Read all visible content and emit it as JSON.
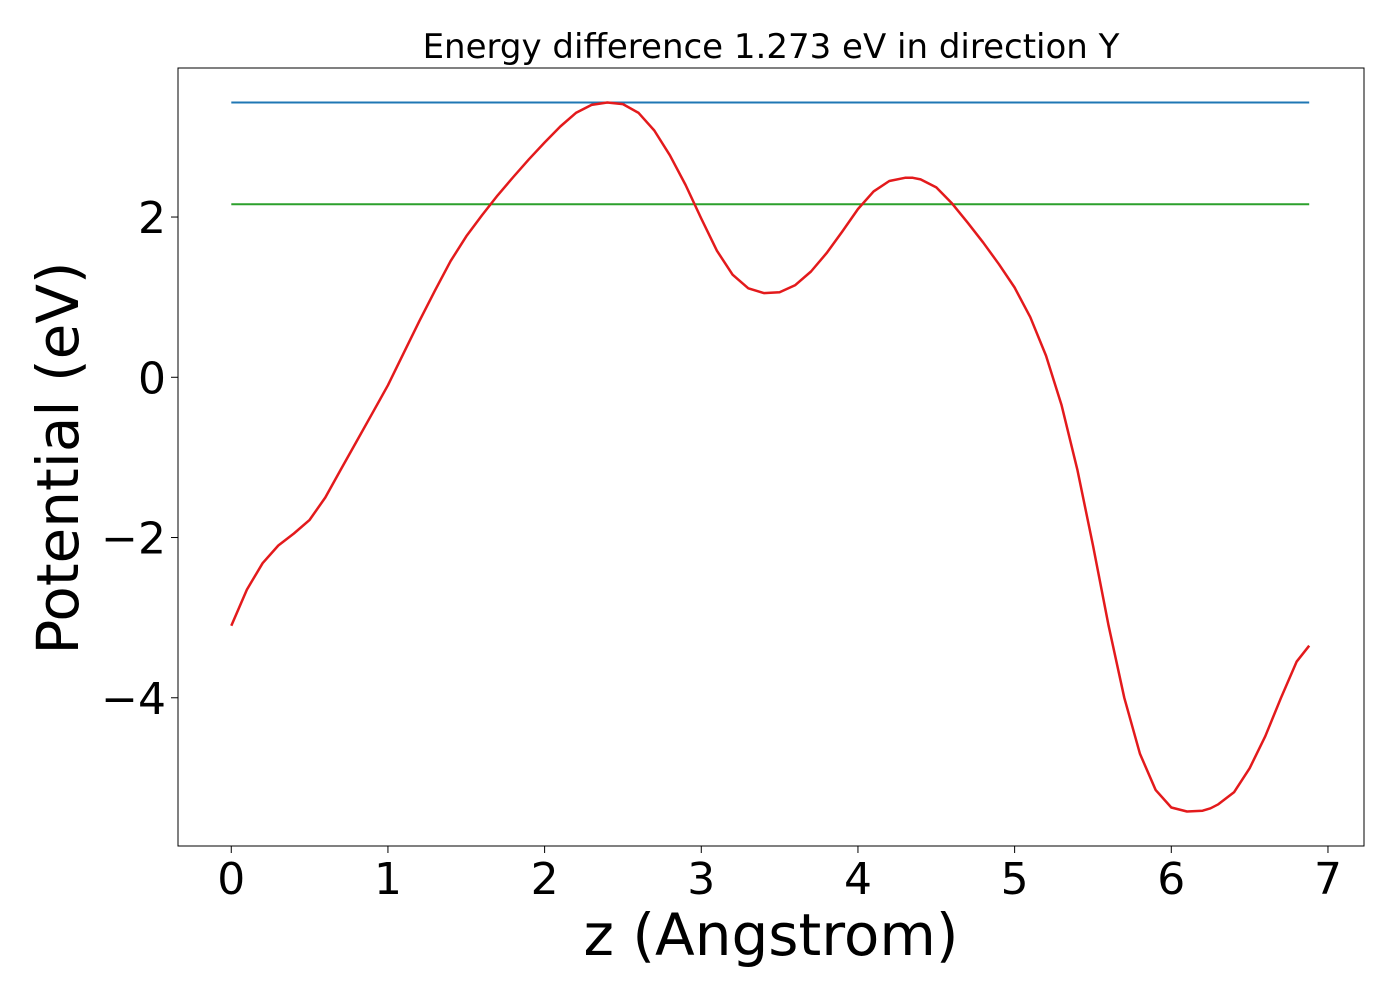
{
  "chart_data": {
    "type": "line",
    "title": "Energy difference 1.273 eV in direction Y",
    "xlabel": "z (Angstrom)",
    "ylabel": "Potential (eV)",
    "xlim": [
      -0.34,
      7.23
    ],
    "ylim": [
      -5.85,
      3.86
    ],
    "xticks": [
      0,
      1,
      2,
      3,
      4,
      5,
      6,
      7
    ],
    "xtick_labels": [
      "0",
      "1",
      "2",
      "3",
      "4",
      "5",
      "6",
      "7"
    ],
    "yticks": [
      2,
      0,
      -2,
      -4
    ],
    "ytick_labels": [
      "2",
      "0",
      "−2",
      "−4"
    ],
    "grid": false,
    "colors": {
      "potential": "#e31a1c",
      "max": "#1f77b4",
      "avg": "#2ca02c"
    },
    "series": [
      {
        "kind": "curve",
        "x": [
          0.0,
          0.1,
          0.2,
          0.3,
          0.4,
          0.5,
          0.6,
          0.7,
          0.8,
          0.9,
          1.0,
          1.1,
          1.2,
          1.3,
          1.4,
          1.5,
          1.6,
          1.7,
          1.8,
          1.9,
          2.0,
          2.1,
          2.2,
          2.3,
          2.4,
          2.5,
          2.6,
          2.7,
          2.8,
          2.9,
          3.0,
          3.1,
          3.2,
          3.3,
          3.4,
          3.5,
          3.6,
          3.7,
          3.8,
          3.9,
          4.0,
          4.1,
          4.2,
          4.3,
          4.35,
          4.4,
          4.5,
          4.6,
          4.7,
          4.8,
          4.9,
          5.0,
          5.1,
          5.2,
          5.3,
          5.4,
          5.5,
          5.6,
          5.7,
          5.8,
          5.9,
          6.0,
          6.1,
          6.2,
          6.25,
          6.3,
          6.4,
          6.5,
          6.6,
          6.7,
          6.8,
          6.88
        ],
        "y": [
          -3.1,
          -2.65,
          -2.32,
          -2.1,
          -1.95,
          -1.78,
          -1.5,
          -1.15,
          -0.8,
          -0.45,
          -0.1,
          0.3,
          0.7,
          1.08,
          1.45,
          1.76,
          2.02,
          2.27,
          2.5,
          2.72,
          2.93,
          3.13,
          3.3,
          3.4,
          3.43,
          3.41,
          3.3,
          3.08,
          2.77,
          2.4,
          1.98,
          1.58,
          1.28,
          1.11,
          1.05,
          1.06,
          1.15,
          1.32,
          1.55,
          1.82,
          2.1,
          2.32,
          2.45,
          2.49,
          2.49,
          2.47,
          2.37,
          2.17,
          1.93,
          1.68,
          1.41,
          1.12,
          0.75,
          0.27,
          -0.35,
          -1.15,
          -2.1,
          -3.1,
          -4.0,
          -4.7,
          -5.15,
          -5.37,
          -5.42,
          -5.41,
          -5.38,
          -5.33,
          -5.18,
          -4.88,
          -4.48,
          -4.0,
          -3.55,
          -3.35
        ]
      },
      {
        "kind": "hline",
        "x": [
          0.0,
          6.88
        ],
        "y": [
          3.43,
          3.43
        ]
      },
      {
        "kind": "hline",
        "x": [
          0.0,
          6.88
        ],
        "y": [
          2.16,
          2.16
        ]
      }
    ]
  }
}
